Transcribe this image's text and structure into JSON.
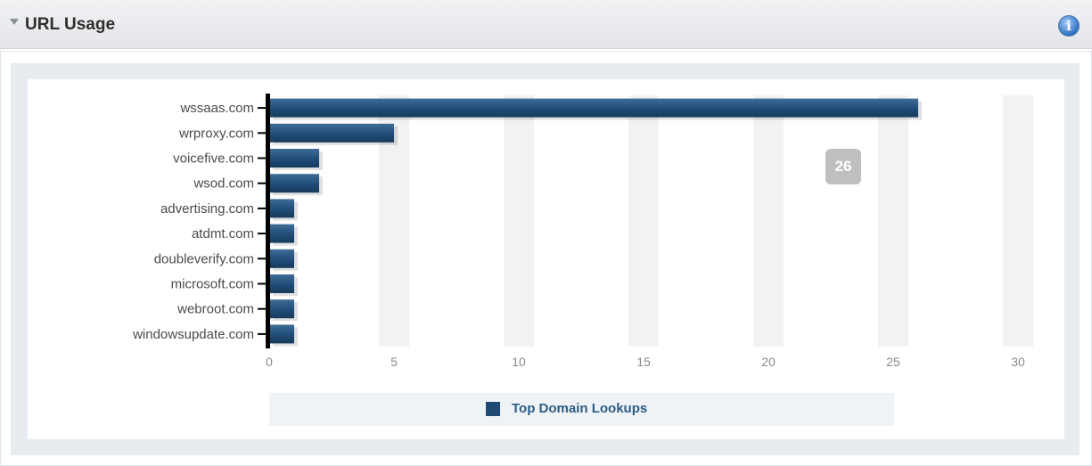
{
  "panel": {
    "title": "URL Usage"
  },
  "tooltip": {
    "value": "26"
  },
  "chart_data": {
    "type": "bar",
    "orientation": "horizontal",
    "categories": [
      "wssaas.com",
      "wrproxy.com",
      "voicefive.com",
      "wsod.com",
      "advertising.com",
      "atdmt.com",
      "doubleverify.com",
      "microsoft.com",
      "webroot.com",
      "windowsupdate.com"
    ],
    "series": [
      {
        "name": "Top Domain Lookups",
        "values": [
          26,
          5,
          2,
          2,
          1,
          1,
          1,
          1,
          1,
          1
        ],
        "color": "#1e4a73"
      }
    ],
    "xlim": [
      0,
      30
    ],
    "x_ticks": [
      0,
      5,
      10,
      15,
      20,
      25,
      30
    ],
    "xlabel": "",
    "ylabel": "",
    "grid": true,
    "legend": "bottom"
  }
}
